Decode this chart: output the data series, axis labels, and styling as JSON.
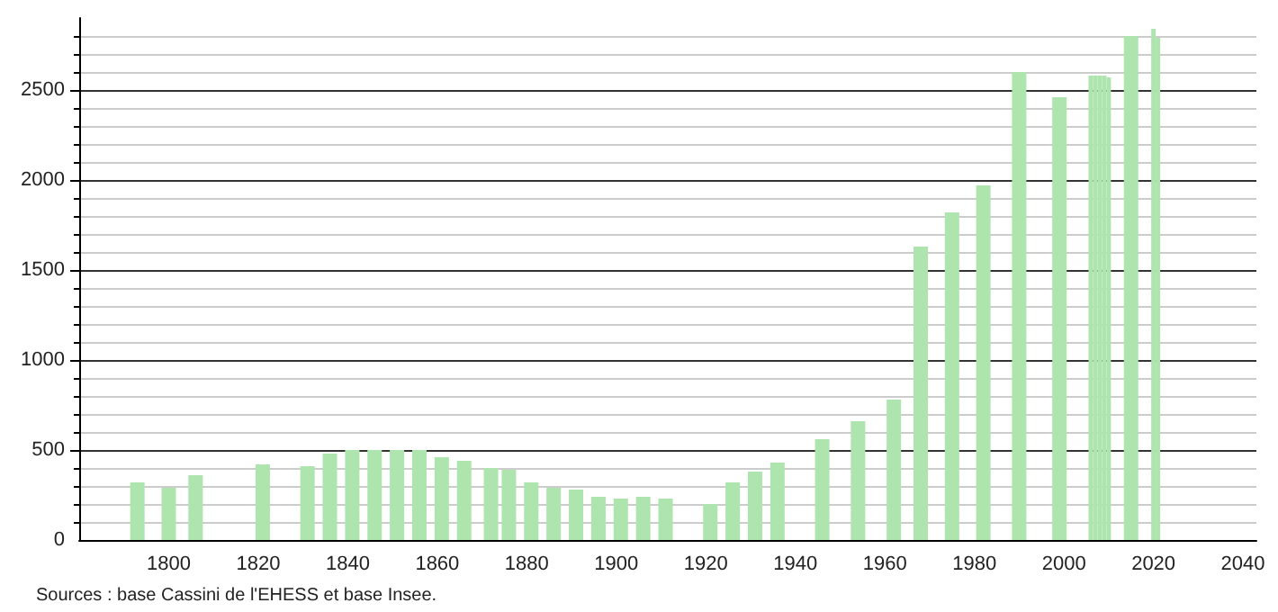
{
  "chart_data": {
    "type": "bar",
    "x": [
      1793,
      1800,
      1806,
      1821,
      1831,
      1836,
      1841,
      1846,
      1851,
      1856,
      1861,
      1866,
      1872,
      1876,
      1881,
      1886,
      1891,
      1896,
      1901,
      1906,
      1911,
      1921,
      1926,
      1931,
      1936,
      1946,
      1954,
      1962,
      1968,
      1975,
      1982,
      1990,
      1999,
      2006,
      2007,
      2008,
      2009,
      2010,
      2015,
      2020,
      2021
    ],
    "values": [
      320,
      290,
      360,
      420,
      410,
      480,
      500,
      500,
      500,
      500,
      460,
      440,
      400,
      390,
      320,
      290,
      280,
      240,
      230,
      240,
      230,
      200,
      320,
      380,
      430,
      560,
      660,
      780,
      1630,
      1820,
      1970,
      2600,
      2460,
      2580,
      2580,
      2580,
      2580,
      2570,
      2800,
      2840,
      2790
    ],
    "color": "#aee5ae",
    "xlim": [
      1780,
      2043
    ],
    "xticks": [
      1800,
      1820,
      1840,
      1860,
      1880,
      1900,
      1920,
      1940,
      1960,
      1980,
      2000,
      2020,
      2040
    ],
    "ylim": [
      0,
      2900
    ],
    "yticks": [
      0,
      500,
      1000,
      1500,
      2000,
      2500
    ],
    "grid": "y",
    "annotations": [
      "Sources : base Cassini de l'EHESS et base Insee."
    ]
  }
}
